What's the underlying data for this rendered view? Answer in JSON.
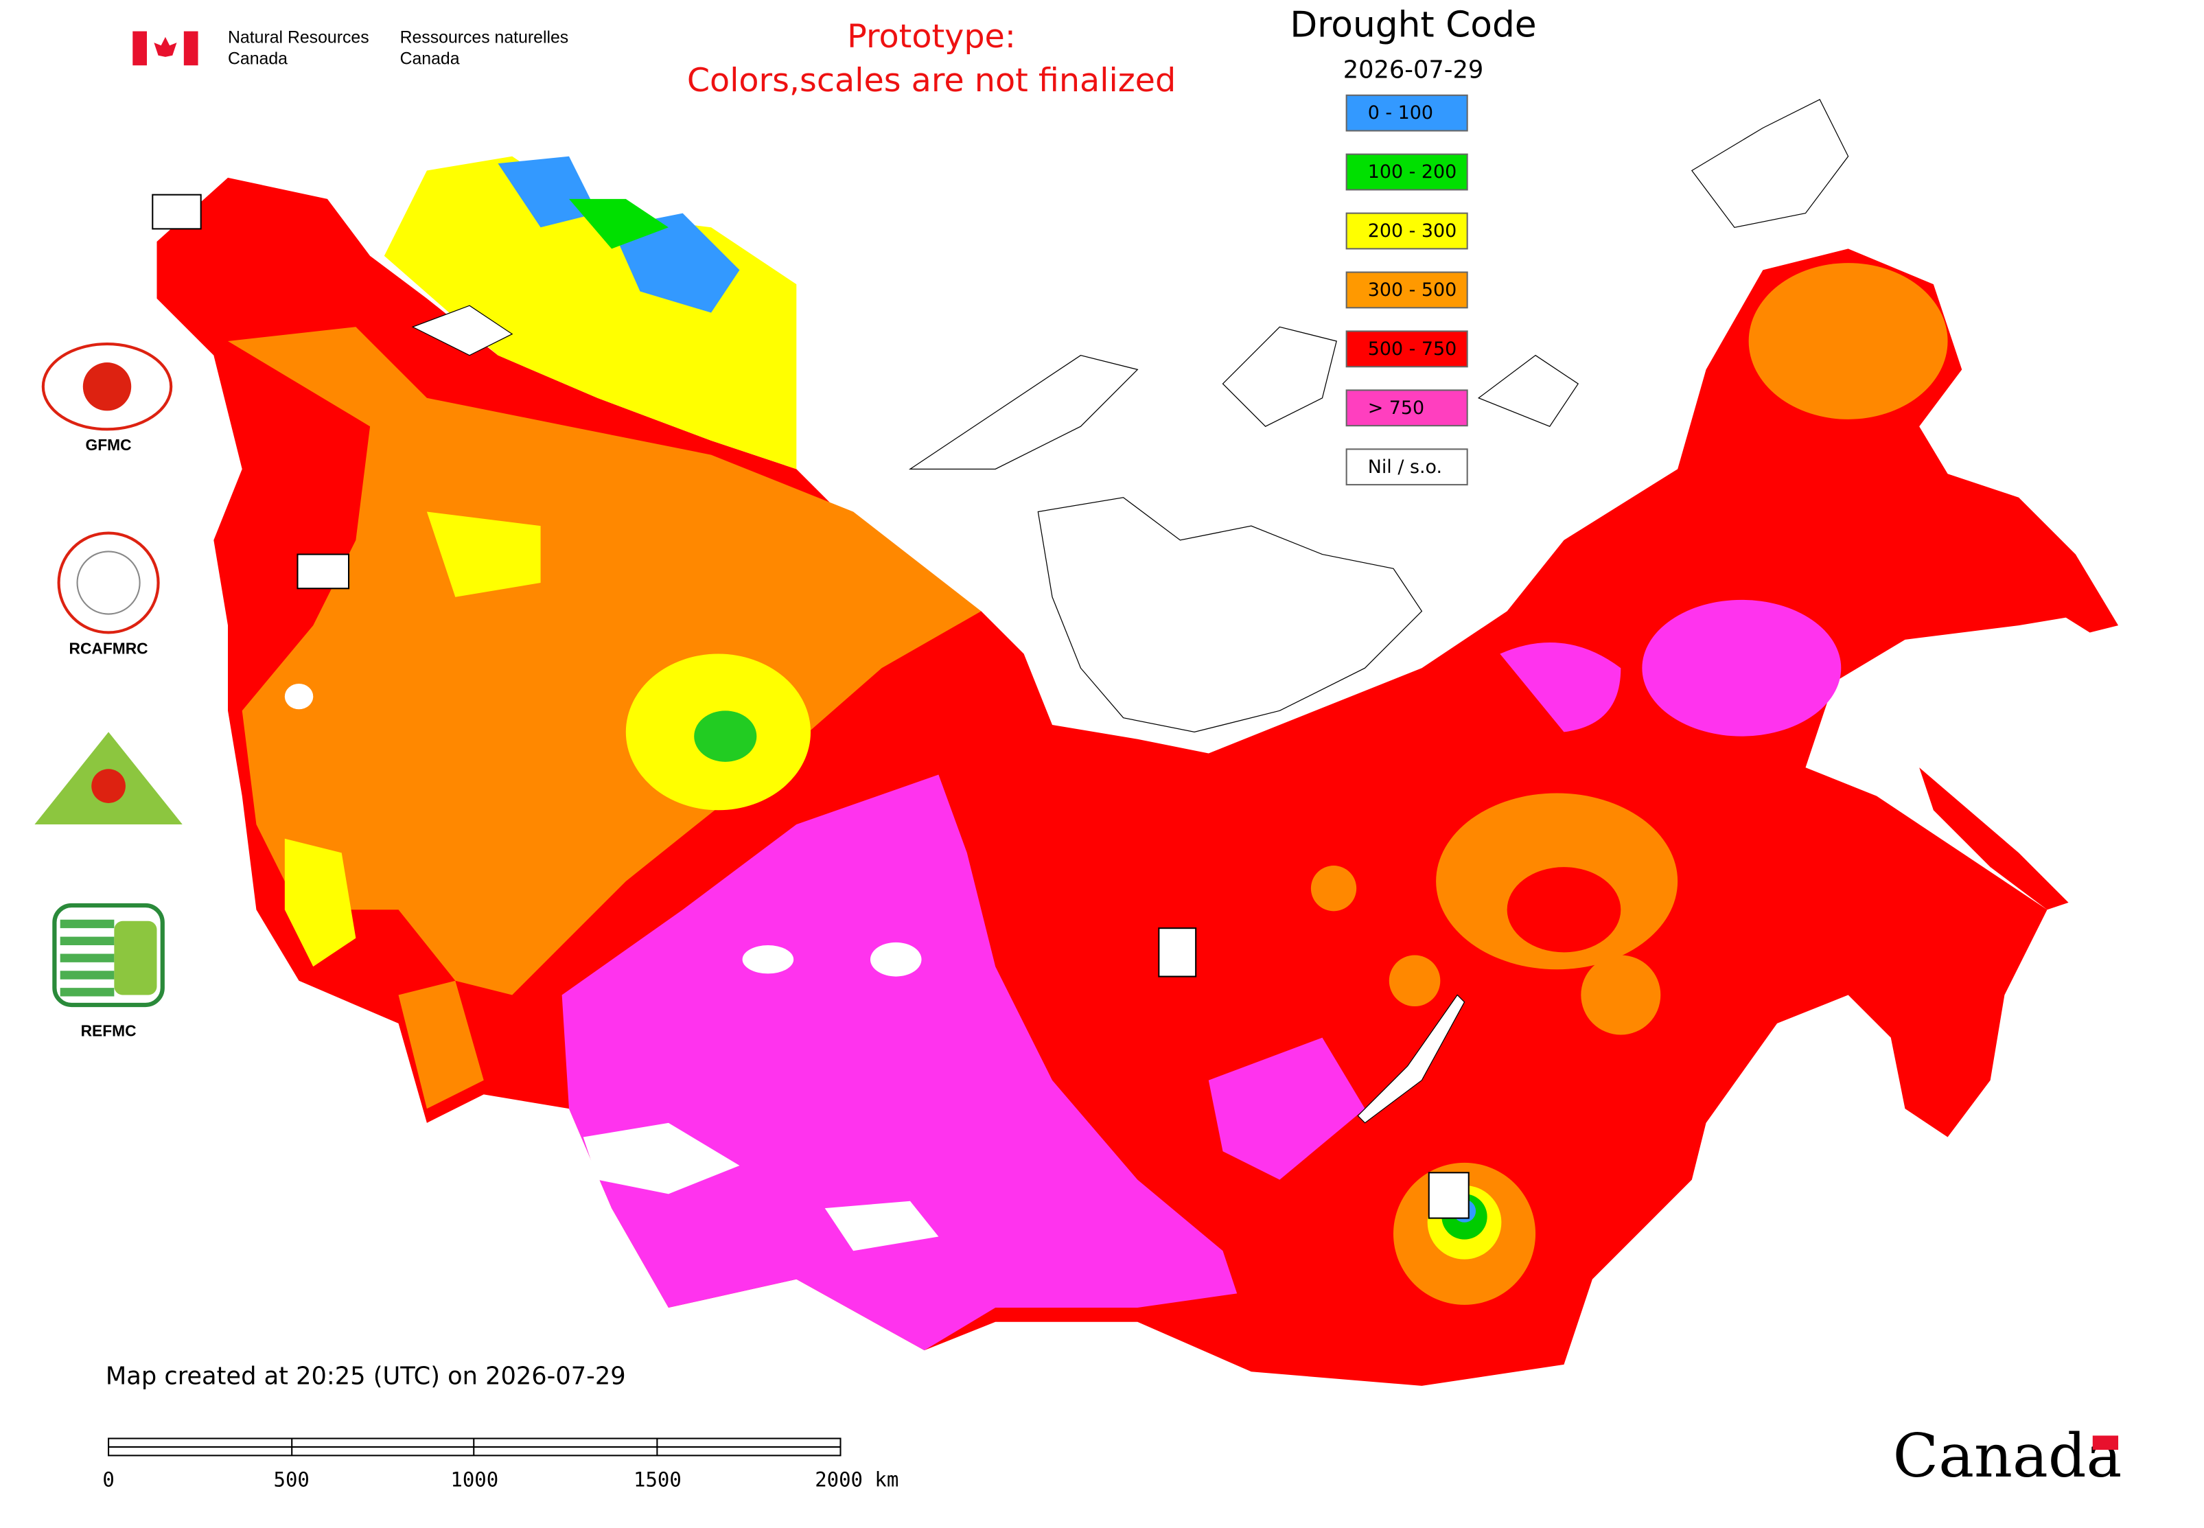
{
  "header": {
    "dept_en_1": "Natural Resources",
    "dept_en_2": "Canada",
    "dept_fr_1": "Ressources naturelles",
    "dept_fr_2": "Canada"
  },
  "notice": {
    "line1": "Prototype:",
    "line2": "Colors,scales are not finalized"
  },
  "legend": {
    "title": "Drought Code",
    "date": "2026-07-29",
    "classes": [
      {
        "label": "0 - 100",
        "color": "#3399ff"
      },
      {
        "label": "100 - 200",
        "color": "#00e000"
      },
      {
        "label": "200 - 300",
        "color": "#ffff00"
      },
      {
        "label": "300 - 500",
        "color": "#ff9900"
      },
      {
        "label": "500 - 750",
        "color": "#ff0000"
      },
      {
        "label": "> 750",
        "color": "#ff3fbf"
      },
      {
        "label": "Nil / s.o.",
        "color": "#ffffff"
      }
    ]
  },
  "logos": [
    {
      "label": "GFMC"
    },
    {
      "label": "RCAFMRC"
    },
    {
      "label": "REFMC"
    }
  ],
  "footer": {
    "created": "Map created at 20:25 (UTC) on 2026-07-29",
    "wordmark": "Canada"
  },
  "scale_bar": {
    "labels": [
      "0",
      "500",
      "1000",
      "1500",
      "2000 km"
    ]
  }
}
